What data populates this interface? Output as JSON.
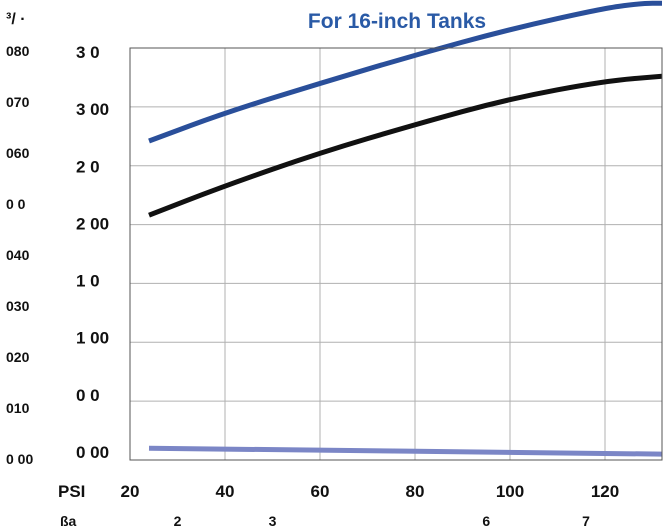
{
  "chart_data": {
    "type": "line",
    "title": "For 16-inch Tanks",
    "corner_label": "³/ ·",
    "x_axis": {
      "label": "PSI",
      "ticks": [
        20,
        40,
        60,
        80,
        100,
        120
      ],
      "range": [
        20,
        132
      ]
    },
    "x_axis_secondary": {
      "label": "ßa",
      "ticks": [
        {
          "x": 30,
          "label": "2"
        },
        {
          "x": 50,
          "label": "3"
        },
        {
          "x": 95,
          "label": "6"
        },
        {
          "x": 116,
          "label": "7"
        }
      ]
    },
    "y_axis_outer": {
      "ticks": [
        "0 00",
        "010",
        "020",
        "030",
        "040",
        "0 0",
        "060",
        "070",
        "080"
      ]
    },
    "y_axis_inner": {
      "ticks": [
        "0 00",
        "0 0",
        "1 00",
        "1 0",
        "2 00",
        "2 0",
        "3 00",
        "3 0"
      ],
      "range": [
        0,
        350
      ]
    },
    "grid": true,
    "series": [
      {
        "color": "#2a4f9a",
        "x": [
          24,
          40,
          60,
          80,
          100,
          120,
          128,
          132
        ],
        "y": [
          271,
          295,
          320,
          344,
          366,
          384,
          388,
          388
        ]
      },
      {
        "color": "#111111",
        "x": [
          24,
          40,
          60,
          80,
          100,
          120,
          132
        ],
        "y": [
          208,
          233,
          261,
          285,
          307,
          322,
          326
        ]
      },
      {
        "color": "#7b86c6",
        "x": [
          24,
          132
        ],
        "y": [
          10,
          5
        ]
      }
    ]
  }
}
